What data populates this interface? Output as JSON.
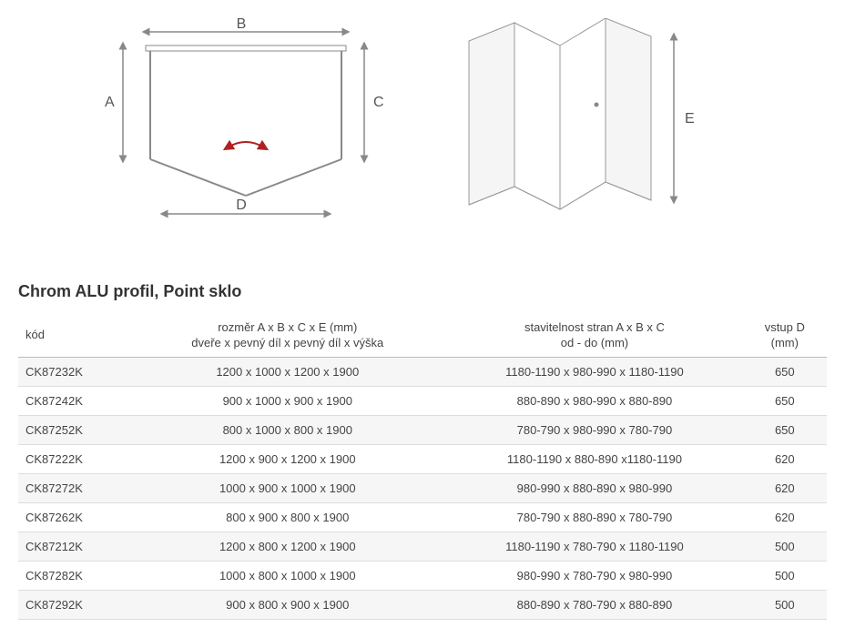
{
  "title": "Chrom ALU profil, Point sklo",
  "dim_labels": {
    "A": "A",
    "B": "B",
    "C": "C",
    "D": "D",
    "E": "E"
  },
  "colors": {
    "line": "#888888",
    "arrow": "#b02020",
    "glass_fill": "#f5f5f5",
    "glass_stroke": "#999999",
    "thead_border": "#bbbbbb",
    "row_border": "#dddddd",
    "row_alt_bg": "#f6f6f6"
  },
  "table": {
    "columns": [
      "kód",
      "rozměr A x B x C x E (mm)\ndveře x pevný díl x pevný díl x výška",
      "stavitelnost stran A x B x C\nod - do (mm)",
      "vstup D\n(mm)"
    ],
    "rows": [
      [
        "CK87232K",
        "1200 x 1000 x 1200 x 1900",
        "1180-1190 x 980-990 x 1180-1190",
        "650"
      ],
      [
        "CK87242K",
        "900 x 1000 x 900 x 1900",
        "880-890 x 980-990 x 880-890",
        "650"
      ],
      [
        "CK87252K",
        "800 x 1000 x 800 x 1900",
        "780-790 x 980-990 x 780-790",
        "650"
      ],
      [
        "CK87222K",
        "1200 x 900 x 1200 x 1900",
        "1180-1190 x 880-890 x1180-1190",
        "620"
      ],
      [
        "CK87272K",
        "1000 x 900 x 1000 x 1900",
        "980-990 x 880-890 x 980-990",
        "620"
      ],
      [
        "CK87262K",
        "800 x 900 x 800 x 1900",
        "780-790 x 880-890 x 780-790",
        "620"
      ],
      [
        "CK87212K",
        "1200 x 800 x 1200 x 1900",
        "1180-1190 x 780-790 x 1180-1190",
        "500"
      ],
      [
        "CK87282K",
        "1000 x 800 x 1000 x 1900",
        "980-990 x 780-790 x 980-990",
        "500"
      ],
      [
        "CK87292K",
        "900 x 800 x 900 x 1900",
        "880-890 x 780-790 x 880-890",
        "500"
      ]
    ]
  }
}
